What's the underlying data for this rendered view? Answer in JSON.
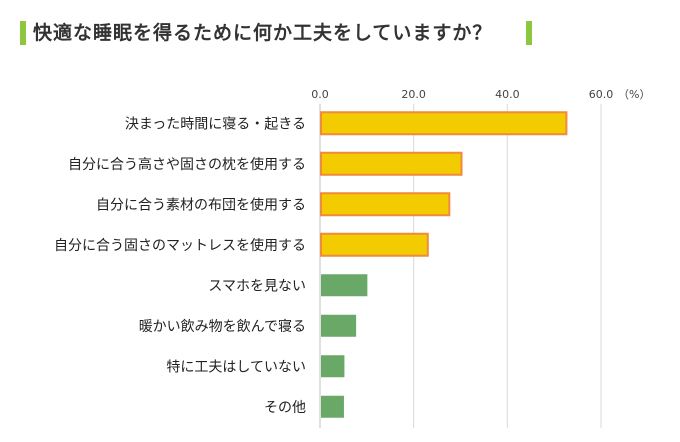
{
  "title": "快適な睡眠を得るために何か工夫をしていますか？",
  "colors": {
    "title_bar": "#8dc63f",
    "bar_yellow": "#f2cc00",
    "bar_yellow_border": "#f08a3c",
    "bar_green": "#6aa867",
    "grid": "#d9d9d9"
  },
  "chart_data": {
    "type": "bar",
    "orientation": "horizontal",
    "title": "快適な睡眠を得るために何か工夫をしていますか？",
    "unit": "（%）",
    "xlim": [
      0,
      60
    ],
    "ticks": [
      "0.0",
      "20.0",
      "40.0",
      "60.0"
    ],
    "tick_values": [
      0,
      20,
      40,
      60
    ],
    "grid": true,
    "categories": [
      "決まった時間に寝る・起きる",
      "自分に合う高さや固さの枕を使用する",
      "自分に合う素材の布団を使用する",
      "自分に合う固さのマットレスを使用する",
      "スマホを見ない",
      "暖かい飲み物を飲んで寝る",
      "特に工夫はしていない",
      "その他"
    ],
    "values": [
      52.4,
      30.0,
      27.4,
      22.8,
      9.9,
      7.5,
      5.0,
      4.9
    ],
    "bar_colors": [
      "yellow",
      "yellow",
      "yellow",
      "yellow",
      "green",
      "green",
      "green",
      "green"
    ]
  }
}
